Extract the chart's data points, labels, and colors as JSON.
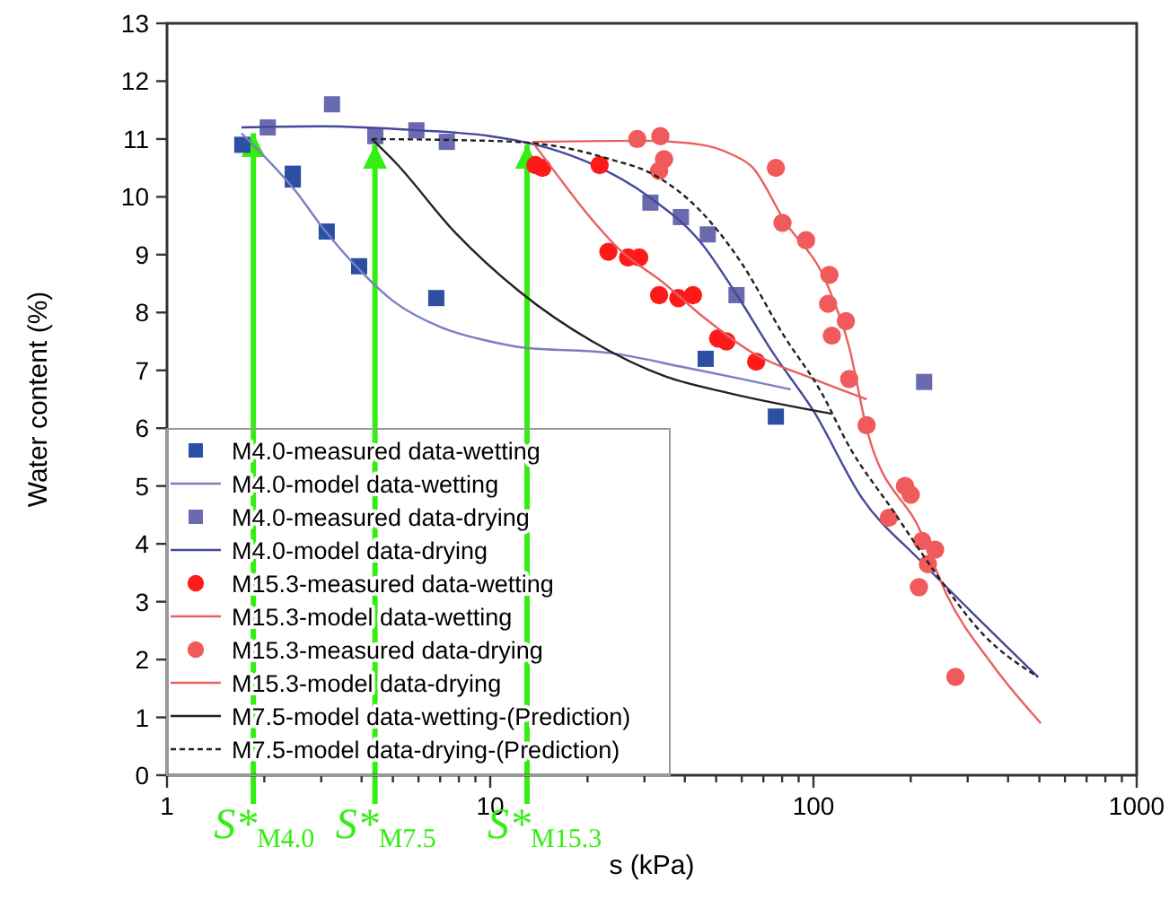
{
  "chart_data": {
    "type": "scatter",
    "xlabel": "s (kPa)",
    "ylabel": "Water content (%)",
    "log": "x",
    "xlim": [
      1,
      1000
    ],
    "ylim": [
      0,
      13
    ],
    "xticks": [
      1,
      {
        "value": 2,
        "label": null
      },
      {
        "value": 3,
        "label": null
      },
      {
        "value": 4,
        "label": null
      },
      {
        "value": 5,
        "label": null
      },
      {
        "value": 6,
        "label": null
      },
      {
        "value": 7,
        "label": null
      },
      {
        "value": 8,
        "label": null
      },
      {
        "value": 9,
        "label": null
      },
      10,
      {
        "value": 20,
        "label": null
      },
      {
        "value": 30,
        "label": null
      },
      {
        "value": 40,
        "label": null
      },
      {
        "value": 50,
        "label": null
      },
      {
        "value": 60,
        "label": null
      },
      {
        "value": 70,
        "label": null
      },
      {
        "value": 80,
        "label": null
      },
      {
        "value": 90,
        "label": null
      },
      100,
      {
        "value": 200,
        "label": null
      },
      {
        "value": 300,
        "label": null
      },
      {
        "value": 400,
        "label": null
      },
      {
        "value": 500,
        "label": null
      },
      {
        "value": 600,
        "label": null
      },
      {
        "value": 700,
        "label": null
      },
      {
        "value": 800,
        "label": null
      },
      {
        "value": 900,
        "label": null
      },
      1000
    ],
    "yticks": [
      0,
      1,
      2,
      3,
      4,
      5,
      6,
      7,
      8,
      9,
      10,
      11,
      12,
      13
    ],
    "grid": false,
    "legend": "bottom left",
    "series": [
      {
        "name": "M4.0-measured data-wetting",
        "marker": "square",
        "color": "#2a4fa3",
        "x": [
          1.71,
          2.45,
          2.45,
          3.12,
          3.93,
          6.81,
          46.4,
          76.5
        ],
        "values": [
          10.9,
          10.4,
          10.3,
          9.4,
          8.8,
          8.25,
          7.2,
          6.2
        ]
      },
      {
        "name": "M4.0-model data-wetting",
        "type": "line",
        "color": "#7b7fc2",
        "x": [
          1.7,
          2,
          2.5,
          3,
          4,
          5,
          7,
          10,
          12.4,
          23.5,
          40,
          60,
          85
        ],
        "values": [
          11.1,
          10.7,
          10.1,
          9.5,
          8.7,
          8.2,
          7.75,
          7.5,
          7.4,
          7.3,
          7.05,
          6.85,
          6.67
        ]
      },
      {
        "name": "M4.0-measured data-drying",
        "marker": "square",
        "color": "#6a6ab0",
        "x": [
          2.05,
          3.24,
          4.41,
          5.91,
          7.34,
          31.3,
          38.9,
          47.1,
          57.8,
          220
        ],
        "values": [
          11.2,
          11.6,
          11.05,
          11.15,
          10.95,
          9.9,
          9.65,
          9.35,
          8.3,
          6.8
        ]
      },
      {
        "name": "M4.0-model data-drying",
        "type": "line",
        "color": "#44499a",
        "x": [
          1.7,
          3,
          6,
          10,
          15,
          20,
          31,
          45,
          58,
          75,
          100,
          141,
          215,
          305,
          495
        ],
        "values": [
          11.2,
          11.22,
          11.15,
          11.05,
          10.85,
          10.6,
          10,
          9.2,
          8.3,
          7.3,
          6.3,
          4.8,
          3.7,
          2.85,
          1.7
        ]
      },
      {
        "name": "M15.3-measured data-wetting",
        "marker": "circle",
        "color": "#ff1a1a",
        "x": [
          13.8,
          14.5,
          21.8,
          23.2,
          26.7,
          28.9,
          33.3,
          38.2,
          42.4,
          50.7,
          53.8,
          66.5
        ],
        "values": [
          10.55,
          10.5,
          10.55,
          9.05,
          8.95,
          8.95,
          8.3,
          8.25,
          8.3,
          7.55,
          7.5,
          7.15
        ]
      },
      {
        "name": "M15.3-model data-wetting",
        "type": "line",
        "color": "#e8605f",
        "x": [
          13.5,
          16,
          20,
          25,
          34.6,
          45,
          65,
          100,
          146
        ],
        "values": [
          10.95,
          10.4,
          9.7,
          9.1,
          8.5,
          7.95,
          7.3,
          6.85,
          6.5
        ]
      },
      {
        "name": "M15.3-measured data-drying",
        "marker": "circle",
        "color": "#f05a5a",
        "x": [
          28.5,
          33.6,
          34.5,
          33.3,
          76.5,
          80.2,
          94.9,
          112,
          111,
          126,
          114,
          129,
          146,
          192,
          200,
          171,
          217,
          238,
          226,
          212,
          275
        ],
        "values": [
          11,
          11.05,
          10.65,
          10.45,
          10.5,
          9.55,
          9.25,
          8.65,
          8.15,
          7.85,
          7.6,
          6.85,
          6.05,
          5,
          4.85,
          4.45,
          4.05,
          3.9,
          3.65,
          3.25,
          1.7
        ]
      },
      {
        "name": "M15.3-model data-drying",
        "type": "line",
        "color": "#e8605f",
        "x": [
          13.5,
          30,
          45,
          55,
          65,
          81,
          110,
          129,
          146,
          215,
          257,
          359,
          505
        ],
        "values": [
          10.95,
          10.97,
          10.9,
          10.75,
          10.5,
          9.6,
          8.5,
          7.4,
          6,
          4.2,
          3.15,
          1.9,
          0.9
        ]
      },
      {
        "name": "M7.5-model data-wetting-(Prediction)",
        "type": "line",
        "color": "#222222",
        "x": [
          4.3,
          5.08,
          7.74,
          12.4,
          20.7,
          34.6,
          55.5,
          114
        ],
        "values": [
          11,
          10.6,
          9.4,
          8.35,
          7.5,
          6.9,
          6.6,
          6.25
        ]
      },
      {
        "name": "M7.5-model data-drying-(Prediction)",
        "type": "line",
        "line_style": "dashed",
        "color": "#222222",
        "x": [
          4.3,
          8,
          12,
          17,
          23.5,
          31.6,
          44.8,
          60,
          81,
          105,
          130,
          175,
          235,
          333,
          495
        ],
        "values": [
          11,
          10.98,
          10.95,
          10.85,
          10.65,
          10.4,
          9.75,
          8.85,
          7.6,
          6.65,
          5.65,
          4.6,
          3.55,
          2.45,
          1.7
        ]
      }
    ],
    "annotations": [
      {
        "text": "S*$_{M4.0}$",
        "x": 1.85,
        "y": 11.1
      },
      {
        "text": "S*$_{M7.5}$",
        "x": 4.4,
        "y": 10.9
      },
      {
        "text": "S*$_{M15.3}$",
        "x": 13,
        "y": 10.9
      }
    ]
  }
}
